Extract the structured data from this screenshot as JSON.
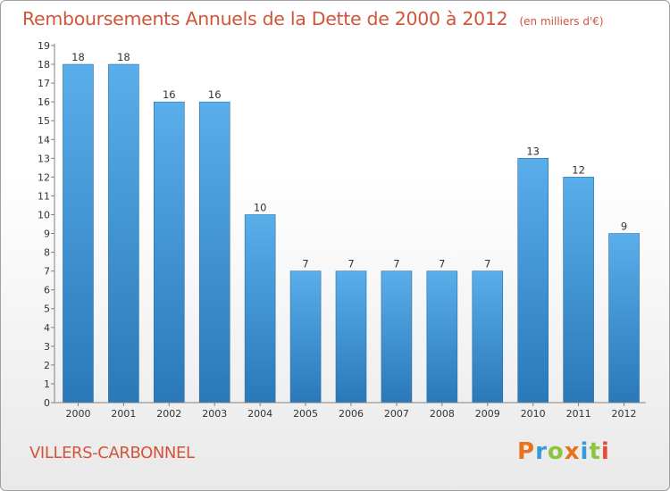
{
  "chart_data": {
    "type": "bar",
    "title": "Remboursements Annuels de la Dette de 2000 à 2012",
    "subtitle": "(en milliers d'€)",
    "categories": [
      "2000",
      "2001",
      "2002",
      "2003",
      "2004",
      "2005",
      "2006",
      "2007",
      "2008",
      "2009",
      "2010",
      "2011",
      "2012"
    ],
    "values": [
      18,
      18,
      16,
      16,
      10,
      7,
      7,
      7,
      7,
      7,
      13,
      12,
      9
    ],
    "data_labels": [
      "18",
      "18",
      "16",
      "16",
      "10",
      "7",
      "7",
      "7",
      "7",
      "7",
      "13",
      "12",
      "9"
    ],
    "y_ticks": [
      "0",
      "1",
      "2",
      "3",
      "4",
      "5",
      "6",
      "7",
      "8",
      "9",
      "10",
      "11",
      "12",
      "13",
      "14",
      "15",
      "16",
      "17",
      "18",
      "19"
    ],
    "ylim": [
      0,
      19
    ],
    "xlabel": "",
    "ylabel": "",
    "grid": false,
    "legend": "none",
    "bar_color_top": "#5aaeea",
    "bar_color_bottom": "#2a78b8"
  },
  "commune": "VILLERS-CARBONNEL",
  "logo": {
    "text": "Proxiti",
    "letters": [
      {
        "ch": "P",
        "color": "#e8731e"
      },
      {
        "ch": "r",
        "color": "#3a9ad9"
      },
      {
        "ch": "o",
        "color": "#8cc63f"
      },
      {
        "ch": "x",
        "color": "#e8731e"
      },
      {
        "ch": "i",
        "color": "#3a9ad9"
      },
      {
        "ch": "t",
        "color": "#8cc63f"
      },
      {
        "ch": "i",
        "color": "#e84a3a"
      }
    ]
  },
  "colors": {
    "title": "#d2553a",
    "axis": "#808080",
    "tick_text": "#333333"
  }
}
